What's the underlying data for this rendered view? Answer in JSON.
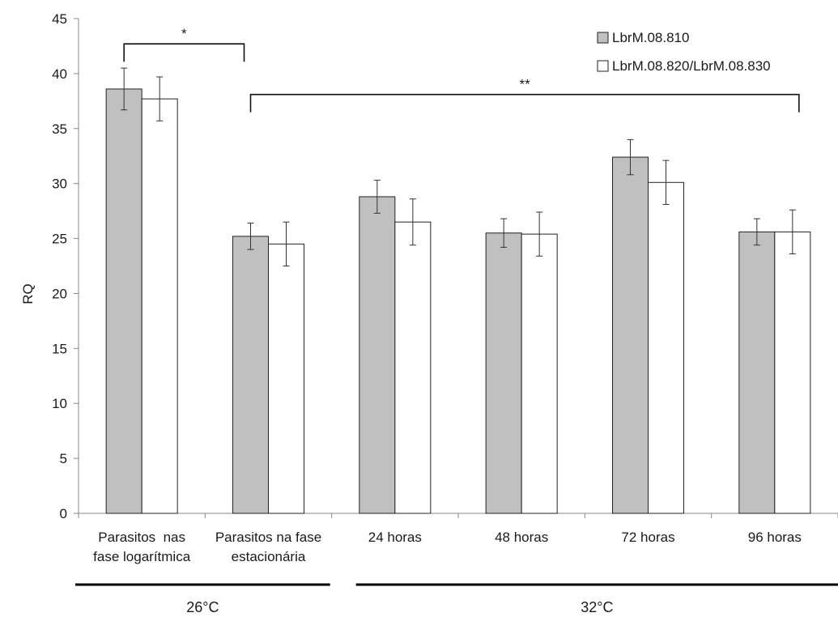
{
  "chart_data": {
    "type": "bar",
    "ylabel": "RQ",
    "ylim": [
      0,
      45
    ],
    "yticks": [
      0,
      5,
      10,
      15,
      20,
      25,
      30,
      35,
      40,
      45
    ],
    "grid": false,
    "legend_position": "top-right",
    "categories": [
      [
        "Parasitos  nas",
        "fase logarítmica"
      ],
      [
        "Parasitos na fase",
        "estacionária"
      ],
      [
        "24 horas"
      ],
      [
        "48 horas"
      ],
      [
        "72 horas"
      ],
      [
        "96 horas"
      ]
    ],
    "series": [
      {
        "name": "LbrM.08.810",
        "color": "#c0c0c0",
        "values": [
          38.6,
          25.2,
          28.8,
          25.5,
          32.4,
          25.6
        ],
        "errors": [
          1.9,
          1.2,
          1.5,
          1.3,
          1.6,
          1.2
        ]
      },
      {
        "name": "LbrM.08.820/LbrM.08.830",
        "color": "#ffffff",
        "values": [
          37.7,
          24.5,
          26.5,
          25.4,
          30.1,
          25.6
        ],
        "errors": [
          2.0,
          2.0,
          2.1,
          2.0,
          2.0,
          2.0
        ]
      }
    ],
    "annotations": [
      {
        "label": "*",
        "from_category": 0,
        "to_category": 1,
        "y": 42.7
      },
      {
        "label": "**",
        "from_category": 1,
        "to_category": 5,
        "y": 38.1
      }
    ],
    "groups": [
      {
        "label": "26°C",
        "from_category": 0,
        "to_category": 1
      },
      {
        "label": "32°C",
        "from_category": 2,
        "to_category": 5
      }
    ]
  }
}
